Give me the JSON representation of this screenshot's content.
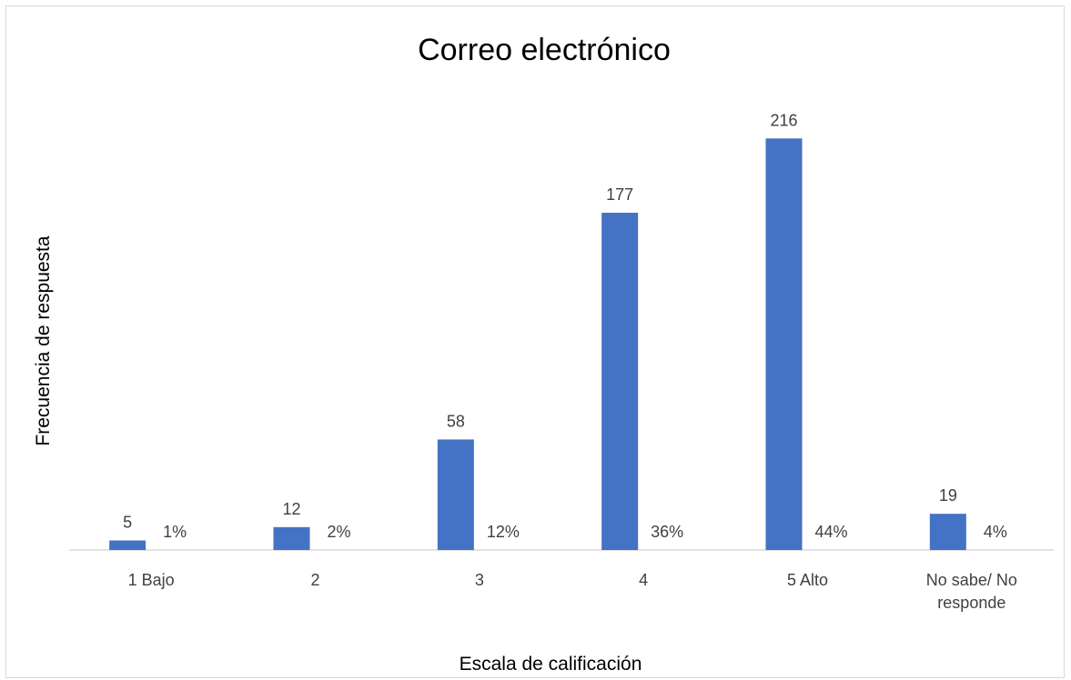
{
  "chart_data": {
    "type": "bar",
    "title": "Correo electrónico",
    "xlabel": "Escala de calificación",
    "ylabel": "Frecuencia de respuesta",
    "categories": [
      "1 Bajo",
      "2",
      "3",
      "4",
      "5 Alto",
      "No sabe/ No responde"
    ],
    "series": [
      {
        "values": [
          5,
          12,
          58,
          177,
          216,
          19
        ]
      },
      {
        "values": [
          1,
          2,
          12,
          36,
          44,
          4
        ]
      }
    ],
    "labels": {
      "frequency": [
        "5",
        "12",
        "58",
        "177",
        "216",
        "19"
      ],
      "percent": [
        "1%",
        "2%",
        "12%",
        "36%",
        "44%",
        "4%"
      ]
    },
    "ylim": [
      0,
      240
    ],
    "grid": false,
    "legend": "none",
    "colors": {
      "bar": "#4472c4",
      "axis": "#d9d9d9"
    }
  }
}
